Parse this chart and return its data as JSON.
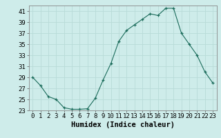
{
  "xlabel": "Humidex (Indice chaleur)",
  "x": [
    0,
    1,
    2,
    3,
    4,
    5,
    6,
    7,
    8,
    9,
    10,
    11,
    12,
    13,
    14,
    15,
    16,
    17,
    18,
    19,
    20,
    21,
    22,
    23
  ],
  "y": [
    29,
    27.5,
    25.5,
    25,
    23.5,
    23.2,
    23.2,
    23.3,
    25.2,
    28.5,
    31.5,
    35.5,
    37.5,
    38.5,
    39.5,
    40.5,
    40.2,
    41.5,
    41.5,
    37,
    35,
    33,
    30,
    28
  ],
  "ylim": [
    23,
    42
  ],
  "yticks": [
    23,
    25,
    27,
    29,
    31,
    33,
    35,
    37,
    39,
    41
  ],
  "xlim": [
    -0.5,
    23.5
  ],
  "line_color": "#1a6b5a",
  "marker": "+",
  "bg_color": "#ceecea",
  "grid_color": "#b8dbd8",
  "tick_label_fontsize": 6.5,
  "xlabel_fontsize": 7.5
}
